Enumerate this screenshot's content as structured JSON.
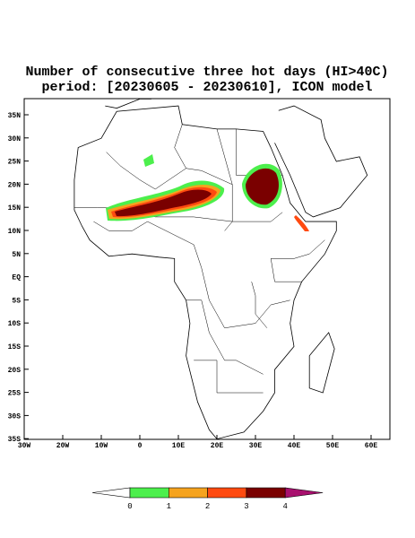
{
  "header": {
    "title_line1": "Number of consecutive three hot days (HI>40C)",
    "title_line2": "period: [20230605 - 20230610], ICON model"
  },
  "map": {
    "lat_ticks": [
      "35N",
      "30N",
      "25N",
      "20N",
      "15N",
      "10N",
      "5N",
      "EQ",
      "5S",
      "10S",
      "15S",
      "20S",
      "25S",
      "30S",
      "35S"
    ],
    "lon_ticks": [
      "30W",
      "20W",
      "10W",
      "0",
      "10E",
      "20E",
      "30E",
      "40E",
      "50E",
      "60E"
    ]
  },
  "colorbar": {
    "labels": [
      0,
      1,
      2,
      3,
      4
    ],
    "colors": [
      "#ffffff",
      "#4cef4c",
      "#f5a31e",
      "#ff4a10",
      "#7a0000",
      "#a8106e"
    ]
  }
}
